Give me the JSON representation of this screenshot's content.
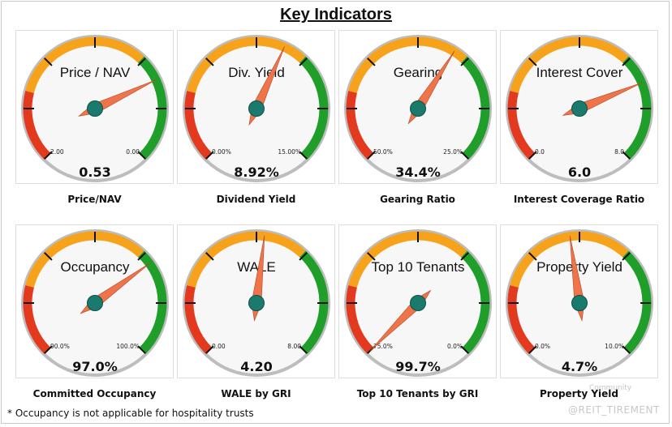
{
  "title": "Key Indicators",
  "footnote": "* Occupancy is not applicable for hospitality trusts",
  "watermark": "@REIT_TIREMENT",
  "watermark_top": "Community",
  "colors": {
    "red": "#e33a1f",
    "orange": "#f7a21b",
    "green": "#1f9e2a",
    "needle": "#f0744a",
    "hub": "#1a7a6e",
    "rim": "#bdbdbd"
  },
  "gauges": [
    {
      "title": "Price / NAV",
      "min_label": "2.00",
      "max_label": "0.00",
      "value": "0.53",
      "caption": "Price/NAV",
      "needle_pct": 0.74
    },
    {
      "title": "Div. Yield",
      "min_label": "0.00%",
      "max_label": "15.00%",
      "value": "8.92%",
      "caption": "Dividend Yield",
      "needle_pct": 0.59
    },
    {
      "title": "Gearing",
      "min_label": "50.0%",
      "max_label": "25.0%",
      "value": "34.4%",
      "caption": "Gearing Ratio",
      "needle_pct": 0.62
    },
    {
      "title": "Interest Cover",
      "min_label": "0.0",
      "max_label": "8.0",
      "value": "6.0",
      "caption": "Interest Coverage Ratio",
      "needle_pct": 0.75
    },
    {
      "title": "Occupancy",
      "min_label": "90.0%",
      "max_label": "100.0%",
      "value": "97.0%",
      "caption": "Committed Occupancy",
      "needle_pct": 0.7
    },
    {
      "title": "WALE",
      "min_label": "0.00",
      "max_label": "8.00",
      "value": "4.20",
      "caption": "WALE by GRI",
      "needle_pct": 0.525
    },
    {
      "title": "Top 10 Tenants",
      "min_label": "75.0%",
      "max_label": "0.0%",
      "value": "99.7%",
      "caption": "Top 10 Tenants by GRI",
      "needle_pct": 0.0
    },
    {
      "title": "Property Yield",
      "min_label": "0.0%",
      "max_label": "10.0%",
      "value": "4.7%",
      "caption": "Property Yield",
      "needle_pct": 0.47
    }
  ]
}
